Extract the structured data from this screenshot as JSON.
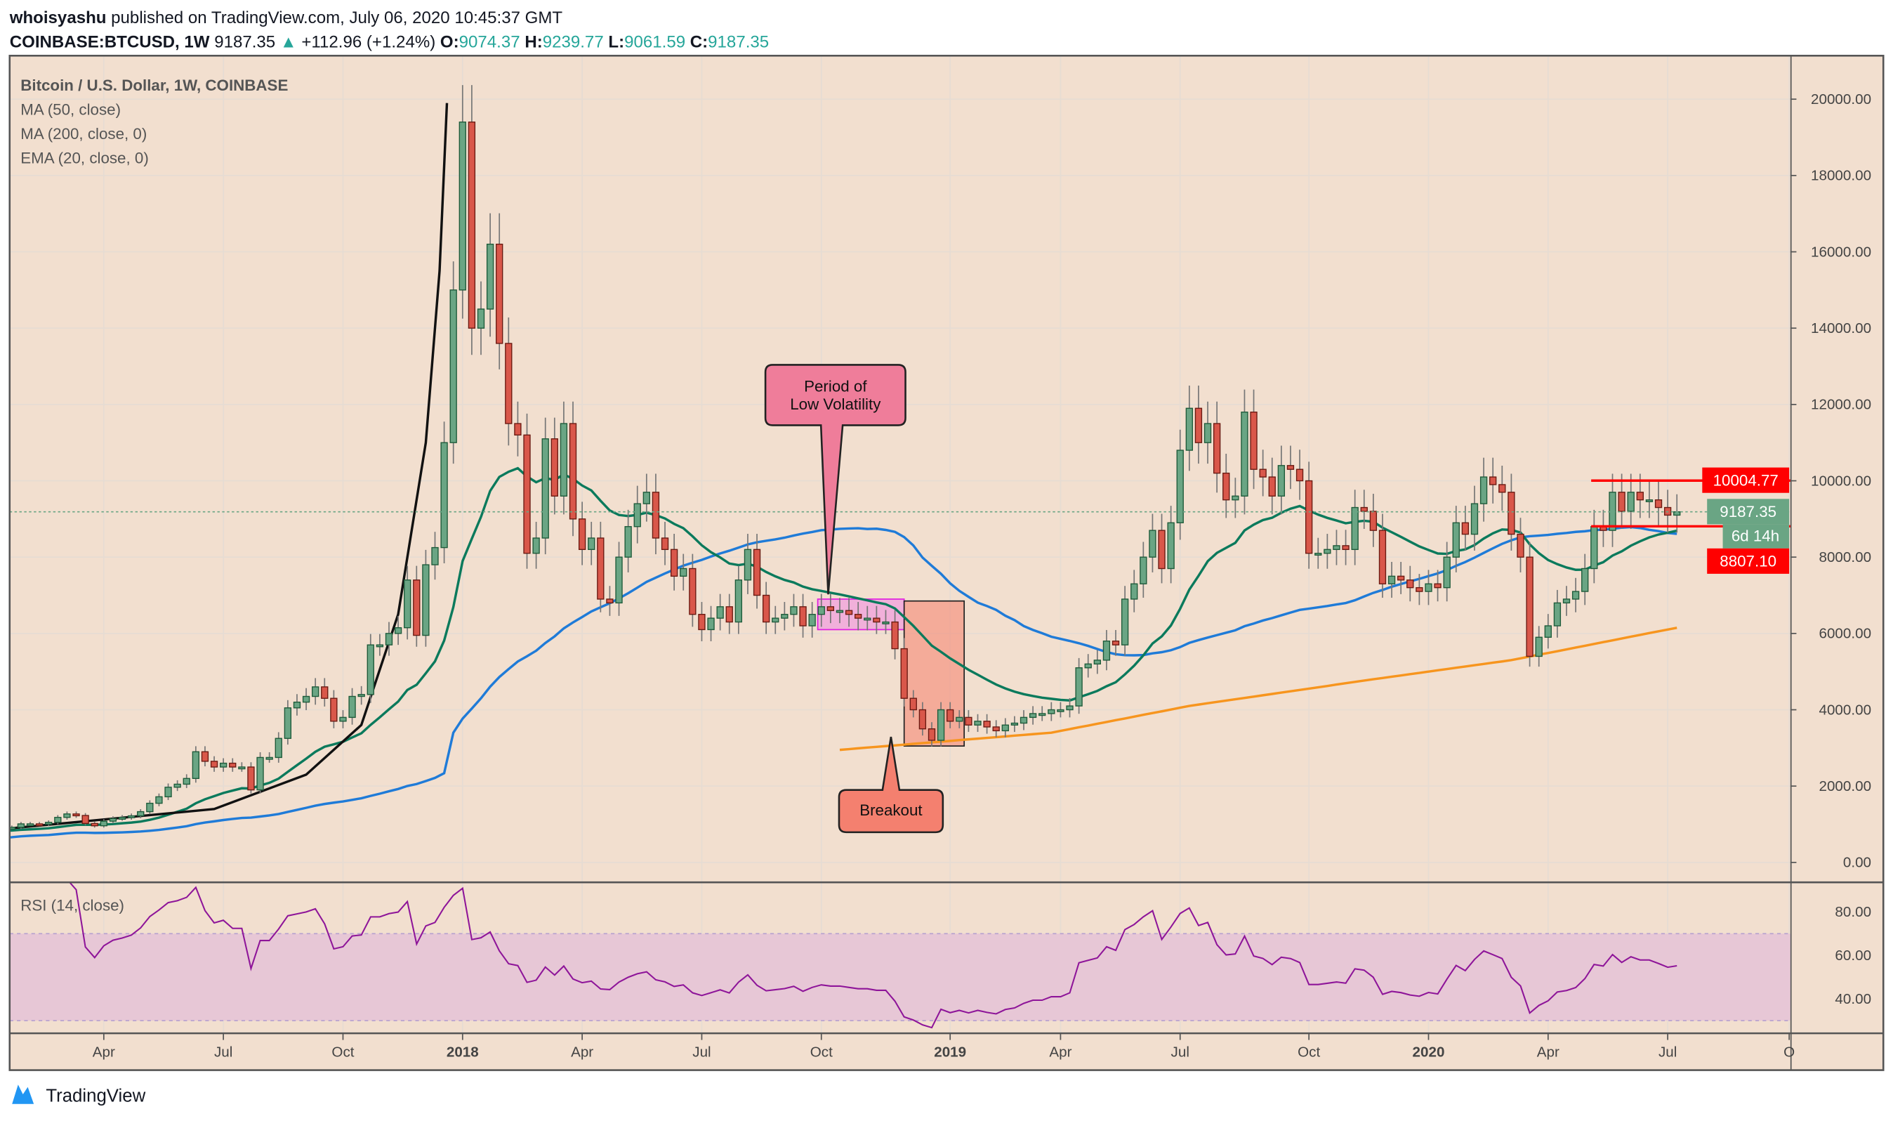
{
  "header": {
    "author": "whoisyashu",
    "published": "published on TradingView.com, July 06, 2020 10:45:37 GMT",
    "symbol": "COINBASE:BTCUSD, 1W",
    "last": "9187.35",
    "change": "+112.96 (+1.24%)",
    "o_label": "O:",
    "o": "9074.37",
    "h_label": "H:",
    "h": "9239.77",
    "l_label": "L:",
    "l": "9061.59",
    "c_label": "C:",
    "c": "9187.35"
  },
  "legend": {
    "title": "Bitcoin / U.S. Dollar, 1W, COINBASE",
    "ma50": "MA (50, close)",
    "ma200": "MA (200, close, 0)",
    "ema20": "EMA (20, close, 0)",
    "rsi": "RSI (14, close)"
  },
  "price_labels": {
    "resistance": "10004.77",
    "last": "9187.35",
    "countdown": "6d 14h",
    "support": "8807.10"
  },
  "annotations": {
    "low_vol_line1": "Period of",
    "low_vol_line2": "Low Volatility",
    "breakout": "Breakout"
  },
  "branding": {
    "logo_text": "TradingView"
  },
  "colors": {
    "background": "#f2dfcf",
    "up": "#6aa584",
    "down": "#d9574a",
    "ma50": "#1f7bd8",
    "ma200": "#f7951e",
    "ema20": "#0b7a5c",
    "rsi": "#8e1599",
    "level": "#ff0000"
  },
  "chart_data": {
    "type": "candlestick",
    "title": "Bitcoin / U.S. Dollar, 1W, COINBASE",
    "ylim": [
      0,
      21000
    ],
    "y_ticks": [
      "0.00",
      "2000.00",
      "4000.00",
      "6000.00",
      "8000.00",
      "10000.00",
      "12000.00",
      "14000.00",
      "16000.00",
      "18000.00",
      "20000.00"
    ],
    "y_tick_values": [
      0,
      2000,
      4000,
      6000,
      8000,
      10000,
      12000,
      14000,
      16000,
      18000,
      20000
    ],
    "x_ticks": [
      "Apr",
      "Jul",
      "Oct",
      "2018",
      "Apr",
      "Jul",
      "Oct",
      "2019",
      "Apr",
      "Jul",
      "Oct",
      "2020",
      "Apr",
      "Jul",
      "O"
    ],
    "x_tick_week_index": [
      12,
      25,
      38,
      51,
      64,
      77,
      90,
      104,
      116,
      129,
      143,
      156,
      169,
      182,
      194
    ],
    "weekly_closes": [
      820,
      900,
      920,
      1010,
      1010,
      1000,
      1050,
      1180,
      1270,
      1230,
      1020,
      960,
      1080,
      1150,
      1180,
      1220,
      1330,
      1550,
      1720,
      1970,
      2050,
      2200,
      2900,
      2650,
      2500,
      2600,
      2500,
      2500,
      1900,
      2750,
      2750,
      3250,
      4050,
      4200,
      4350,
      4600,
      4300,
      3700,
      3800,
      4350,
      4400,
      5700,
      5700,
      6000,
      6150,
      7400,
      5950,
      7800,
      8250,
      11000,
      15000,
      19400,
      14000,
      14500,
      16200,
      13600,
      11500,
      11200,
      8100,
      8500,
      11100,
      9600,
      11500,
      9000,
      8200,
      8500,
      6900,
      6800,
      8000,
      8800,
      9400,
      9700,
      8500,
      8200,
      7500,
      7700,
      6500,
      6100,
      6400,
      6700,
      6300,
      7400,
      8200,
      7000,
      6300,
      6400,
      6500,
      6700,
      6200,
      6500,
      6700,
      6600,
      6600,
      6500,
      6400,
      6400,
      6300,
      6300,
      5600,
      4300,
      4000,
      3500,
      3200,
      4000,
      3700,
      3800,
      3600,
      3700,
      3550,
      3450,
      3600,
      3650,
      3800,
      3900,
      3900,
      4000,
      4000,
      4100,
      5100,
      5200,
      5300,
      5800,
      5700,
      6900,
      7300,
      8000,
      8700,
      7700,
      8900,
      10800,
      11900,
      11000,
      11500,
      10200,
      9500,
      9600,
      11800,
      10300,
      10100,
      9600,
      10400,
      10300,
      10000,
      8100,
      8100,
      8200,
      8300,
      8200,
      9300,
      9200,
      8700,
      7300,
      7500,
      7400,
      7200,
      7100,
      7300,
      7200,
      8000,
      8900,
      8600,
      9400,
      10100,
      9900,
      9700,
      8600,
      8000,
      5400,
      5900,
      6200,
      6800,
      6900,
      7100,
      7700,
      8800,
      8700,
      9700,
      9200,
      9700,
      9500,
      9500,
      9300,
      9100,
      9187.35
    ],
    "ma200_points": [
      [
        92,
        2950
      ],
      [
        115,
        3400
      ],
      [
        130,
        4100
      ],
      [
        150,
        4800
      ],
      [
        165,
        5300
      ],
      [
        183,
        6150
      ]
    ],
    "parabola_points": [
      [
        0,
        850
      ],
      [
        24,
        1400
      ],
      [
        34,
        2300
      ],
      [
        40,
        3600
      ],
      [
        44,
        6500
      ],
      [
        47,
        11000
      ],
      [
        48.5,
        15500
      ],
      [
        49.3,
        19900
      ]
    ],
    "levels": [
      10004.77,
      8807.1
    ],
    "last_price": 9187.35,
    "rsi": {
      "period": 14,
      "ylim": [
        20,
        95
      ],
      "band": [
        30,
        70
      ],
      "ticks": [
        "40.00",
        "60.00",
        "80.00"
      ],
      "tick_values": [
        40,
        60,
        80
      ]
    },
    "low_volatility_range": {
      "from_week": 90,
      "to_week": 99,
      "low": 6100,
      "high": 6900
    },
    "breakout_range": {
      "from_week": 99,
      "to_week": 105,
      "low": 3050,
      "high": 6850
    }
  }
}
